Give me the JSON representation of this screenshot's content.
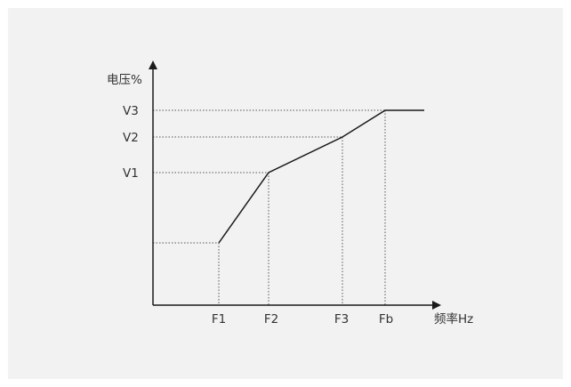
{
  "diagram": {
    "y_axis_label": "电压%",
    "x_axis_label": "频率Hz",
    "y_ticks": [
      "V1",
      "V2",
      "V3"
    ],
    "x_ticks": [
      "F1",
      "F2",
      "F3",
      "Fb"
    ]
  },
  "colors": {
    "background": "#f2f2f2",
    "line": "#1a1a1a",
    "text": "#333333"
  }
}
